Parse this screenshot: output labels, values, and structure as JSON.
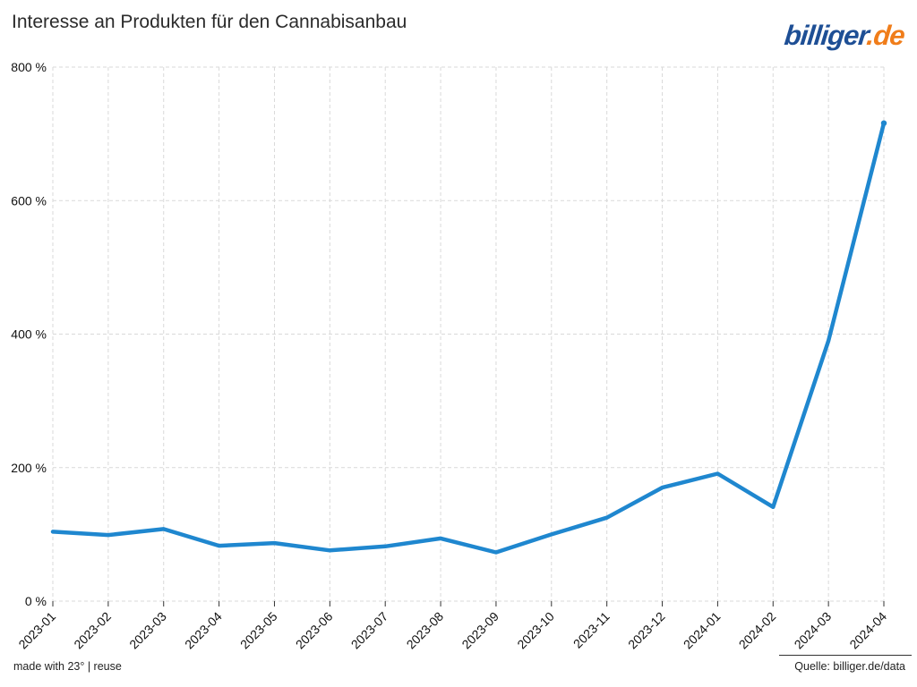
{
  "title": "Interesse an Produkten für den Cannabisanbau",
  "logo": {
    "brand": "billiger",
    "tld": ".de"
  },
  "footer": {
    "left": "made with 23° | reuse",
    "right": "Quelle: billiger.de/data"
  },
  "colors": {
    "line": "#1f87cf",
    "grid": "#d9d9d9",
    "logo_brand": "#1e4f95",
    "logo_tld": "#f07d1a"
  },
  "chart_data": {
    "type": "line",
    "title": "Interesse an Produkten für den Cannabisanbau",
    "xlabel": "",
    "ylabel": "",
    "categories": [
      "2023-01",
      "2023-02",
      "2023-03",
      "2023-04",
      "2023-05",
      "2023-06",
      "2023-07",
      "2023-08",
      "2023-09",
      "2023-10",
      "2023-11",
      "2023-12",
      "2024-01",
      "2024-02",
      "2024-03",
      "2024-04"
    ],
    "series": [
      {
        "values": [
          104,
          99,
          108,
          83,
          87,
          76,
          82,
          94,
          73,
          100,
          125,
          170,
          191,
          141,
          390,
          716
        ]
      }
    ],
    "ylim": [
      0,
      800
    ],
    "yticks": [
      0,
      200,
      400,
      600,
      800
    ],
    "ytick_labels": [
      "0 %",
      "200 %",
      "400 %",
      "600 %",
      "800 %"
    ],
    "grid": true,
    "legend": "none"
  }
}
